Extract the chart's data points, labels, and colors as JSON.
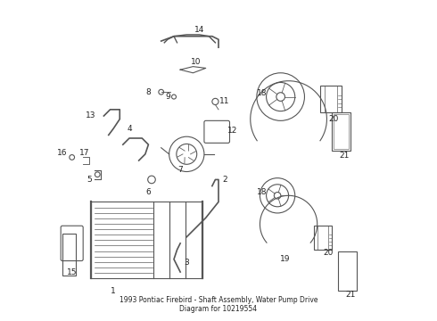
{
  "title": "1993 Pontiac Firebird - Shaft Assembly, Water Pump Drive\nDiagram for 10219554",
  "bg_color": "#ffffff",
  "line_color": "#555555",
  "text_color": "#222222",
  "figsize": [
    4.9,
    3.6
  ],
  "dpi": 100
}
